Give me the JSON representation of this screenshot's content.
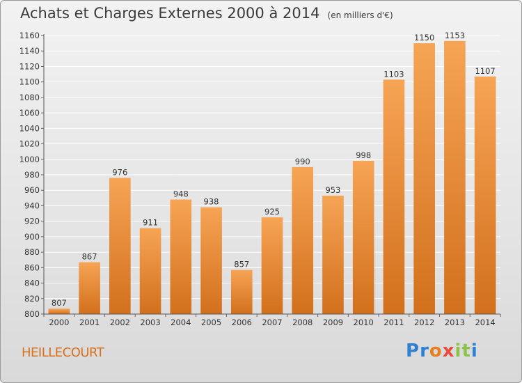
{
  "header": {
    "title": "Achats et Charges Externes 2000 à 2014",
    "unit": "(en milliers d'€)"
  },
  "footer": {
    "place": "HEILLECOURT",
    "logo": "Proxiti"
  },
  "colors": {
    "bar_light": "#f6a455",
    "bar_dark": "#d2701c",
    "place": "#d9701c"
  },
  "chart_data": {
    "type": "bar",
    "title": "Achats et Charges Externes 2000 à 2014",
    "subtitle": "(en milliers d'€)",
    "xlabel": "",
    "ylabel": "",
    "categories": [
      "2000",
      "2001",
      "2002",
      "2003",
      "2004",
      "2005",
      "2006",
      "2007",
      "2008",
      "2009",
      "2010",
      "2011",
      "2012",
      "2013",
      "2014"
    ],
    "values": [
      807,
      867,
      976,
      911,
      948,
      938,
      857,
      925,
      990,
      953,
      998,
      1103,
      1150,
      1153,
      1107
    ],
    "ylim": [
      800,
      1160
    ],
    "yticks": [
      800,
      820,
      840,
      860,
      880,
      900,
      920,
      940,
      960,
      980,
      1000,
      1020,
      1040,
      1060,
      1080,
      1100,
      1120,
      1140,
      1160
    ],
    "grid": true,
    "data_labels": true
  }
}
